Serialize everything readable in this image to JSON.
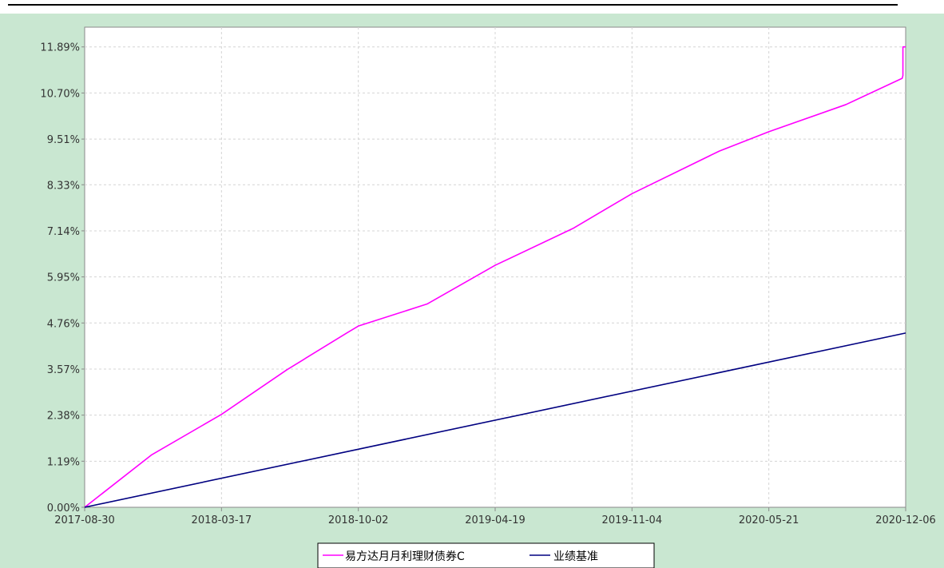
{
  "chart_data": {
    "type": "line",
    "title": "",
    "xlabel": "",
    "ylabel": "",
    "x_ticks": [
      "2017-08-30",
      "2018-03-17",
      "2018-10-02",
      "2019-04-19",
      "2019-11-04",
      "2020-05-21",
      "2020-12-06"
    ],
    "y_ticks": [
      "0.00%",
      "1.19%",
      "2.38%",
      "3.57%",
      "4.76%",
      "5.95%",
      "7.14%",
      "8.33%",
      "9.51%",
      "10.70%",
      "11.89%"
    ],
    "xlim": [
      "2017-08-30",
      "2020-12-06"
    ],
    "ylim": [
      0,
      12.4
    ],
    "grid": true,
    "legend_position": "bottom",
    "series": [
      {
        "name": "易方达月月利理财债券C",
        "color": "#ff00ff",
        "points": [
          [
            "2017-08-30",
            0.0
          ],
          [
            "2017-12-05",
            1.35
          ],
          [
            "2018-03-17",
            2.4
          ],
          [
            "2018-06-20",
            3.55
          ],
          [
            "2018-09-15",
            4.5
          ],
          [
            "2018-10-02",
            4.68
          ],
          [
            "2019-01-10",
            5.25
          ],
          [
            "2019-04-19",
            6.25
          ],
          [
            "2019-08-10",
            7.2
          ],
          [
            "2019-11-04",
            8.1
          ],
          [
            "2020-03-10",
            9.2
          ],
          [
            "2020-05-21",
            9.7
          ],
          [
            "2020-09-10",
            10.4
          ],
          [
            "2020-12-01",
            11.08
          ],
          [
            "2020-12-02",
            11.15
          ],
          [
            "2020-12-02",
            11.89
          ],
          [
            "2020-12-06",
            11.89
          ]
        ]
      },
      {
        "name": "业绩基准",
        "color": "#000080",
        "points": [
          [
            "2017-08-30",
            0.0
          ],
          [
            "2020-12-06",
            4.5
          ]
        ]
      }
    ]
  }
}
